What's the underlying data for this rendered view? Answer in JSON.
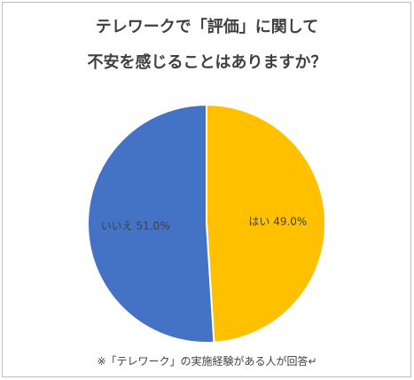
{
  "chart_data": {
    "type": "pie",
    "title_lines": [
      "テレワークで「評価」に関して",
      "不安を感じることはありますか？"
    ],
    "slices": [
      {
        "label": "はい",
        "value": 49.0,
        "display": "はい 49.0%",
        "color": "#FFC000"
      },
      {
        "label": "いいえ",
        "value": 51.0,
        "display": "いいえ 51.0%",
        "color": "#4472C4"
      }
    ],
    "footnote": "※「テレワーク」の実施経験がある人が回答↵"
  }
}
